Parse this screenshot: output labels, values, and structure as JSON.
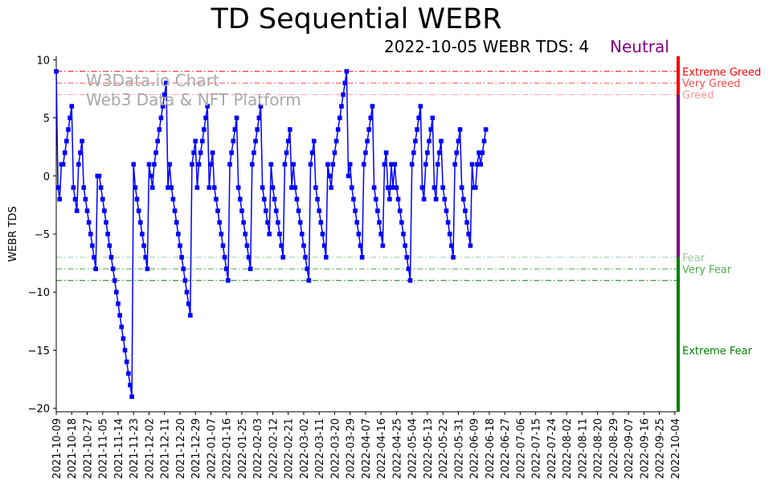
{
  "header": {
    "title": "TD Sequential WEBR",
    "subtitle": "2022-10-05 WEBR TDS: 4",
    "status": "Neutral",
    "status_color": "#800080"
  },
  "watermark": {
    "line1": "W3Data.io Chart",
    "line2": "Web3 Data & NFT Platform"
  },
  "chart_data": {
    "type": "line",
    "title": "TD Sequential WEBR",
    "ylabel": "WEBR TDS",
    "xlabel": "",
    "ylim": [
      -20.3,
      10.3
    ],
    "yticks": [
      10,
      5,
      0,
      -5,
      -10,
      -15,
      -20
    ],
    "xlim": [
      "2021-10-09",
      "2022-10-05"
    ],
    "xticks": [
      "2021-10-09",
      "2021-10-18",
      "2021-10-27",
      "2021-11-05",
      "2021-11-14",
      "2021-11-23",
      "2021-12-02",
      "2021-12-11",
      "2021-12-20",
      "2021-12-29",
      "2022-01-07",
      "2022-01-16",
      "2022-01-25",
      "2022-02-03",
      "2022-02-12",
      "2022-02-21",
      "2022-03-02",
      "2022-03-11",
      "2022-03-20",
      "2022-03-29",
      "2022-04-07",
      "2022-04-16",
      "2022-04-25",
      "2022-05-04",
      "2022-05-13",
      "2022-05-22",
      "2022-05-31",
      "2022-06-09",
      "2022-06-18",
      "2022-06-27",
      "2022-07-06",
      "2022-07-15",
      "2022-07-24",
      "2022-08-02",
      "2022-08-11",
      "2022-08-20",
      "2022-08-29",
      "2022-09-07",
      "2022-09-16",
      "2022-09-25",
      "2022-10-04"
    ],
    "grid": false,
    "line_color": "#0000ff",
    "series": [
      {
        "start_date": "2021-10-09",
        "interval_days": 1,
        "values": [
          9,
          -1,
          -2,
          1,
          1,
          2,
          3,
          4,
          5,
          6,
          -1,
          -2,
          -3,
          1,
          2,
          3,
          -1,
          -2,
          -3,
          -4,
          -5,
          -6,
          -7,
          -8,
          0,
          0,
          -1,
          -2,
          -3,
          -4,
          -5,
          -6,
          -7,
          -8,
          -9,
          -10,
          -11,
          -12,
          -13,
          -14,
          -15,
          -16,
          -17,
          -18,
          -19,
          1,
          -1,
          -2,
          -3,
          -4,
          -5,
          -6,
          -7,
          -8,
          1,
          0,
          -1,
          1,
          2,
          3,
          4,
          5,
          6,
          7,
          8,
          -1,
          1,
          -1,
          -2,
          -3,
          -4,
          -5,
          -6,
          -7,
          -8,
          -9,
          -10,
          -11,
          -12,
          1,
          2,
          3,
          -1,
          1,
          2,
          3,
          4,
          5,
          6,
          -1,
          1,
          2,
          -1,
          -2,
          -3,
          -4,
          -5,
          -6,
          -7,
          -8,
          -9,
          1,
          2,
          3,
          4,
          5,
          -1,
          -2,
          -3,
          -4,
          -5,
          -6,
          -7,
          -8,
          1,
          2,
          3,
          4,
          5,
          6,
          -1,
          -2,
          -3,
          -4,
          -5,
          1,
          -1,
          -2,
          -3,
          -4,
          -5,
          -6,
          -7,
          1,
          2,
          3,
          4,
          -1,
          1,
          -1,
          -2,
          -3,
          -4,
          -5,
          -6,
          -7,
          -8,
          -9,
          1,
          2,
          3,
          -1,
          -2,
          -3,
          -4,
          -5,
          -6,
          -7,
          1,
          0,
          -1,
          1,
          2,
          3,
          4,
          5,
          6,
          7,
          8,
          9,
          0,
          1,
          -1,
          -2,
          -3,
          -4,
          -5,
          -6,
          -7,
          1,
          2,
          3,
          4,
          5,
          6,
          -1,
          -2,
          -3,
          -4,
          -5,
          -6,
          1,
          2,
          -1,
          -2,
          1,
          -1,
          1,
          -1,
          -2,
          -3,
          -4,
          -5,
          -6,
          -7,
          -8,
          -9,
          1,
          2,
          3,
          4,
          5,
          6,
          -1,
          -2,
          1,
          2,
          3,
          4,
          5,
          -1,
          -2,
          1,
          2,
          3,
          -1,
          -2,
          -3,
          -4,
          -5,
          -6,
          -7,
          1,
          2,
          3,
          4,
          -1,
          -2,
          -3,
          -4,
          -5,
          -6,
          1,
          -1,
          -1,
          1,
          2,
          1,
          2,
          3,
          4
        ]
      }
    ],
    "thresholds": [
      {
        "label": "Extreme Greed",
        "value": 9,
        "color": "#ff0000"
      },
      {
        "label": "Very Greed",
        "value": 8,
        "color": "#ff4d4d"
      },
      {
        "label": "Greed",
        "value": 7,
        "color": "#ff9999"
      },
      {
        "label": "Fear",
        "value": -7,
        "color": "#99cc99"
      },
      {
        "label": "Very Fear",
        "value": -8,
        "color": "#4daf4d"
      },
      {
        "label": "Extreme Fear",
        "value": -9,
        "color": "#008000"
      }
    ],
    "side_bar": {
      "range": [
        -20.3,
        10.3
      ],
      "bands": [
        {
          "from": 7,
          "to": 10.3,
          "color": "#ff0000"
        },
        {
          "from": -7,
          "to": 7,
          "color": "#800080"
        },
        {
          "from": -20.3,
          "to": -7,
          "color": "#008000"
        }
      ]
    },
    "side_labels": [
      {
        "text": "Extreme Greed",
        "value": 9,
        "color": "#ff0000"
      },
      {
        "text": "Very Greed",
        "value": 8,
        "color": "#ff4d4d"
      },
      {
        "text": "Greed",
        "value": 7,
        "color": "#ff9999"
      },
      {
        "text": "Fear",
        "value": -7,
        "color": "#99cc99"
      },
      {
        "text": "Very Fear",
        "value": -8,
        "color": "#4daf4d"
      },
      {
        "text": "Extreme Fear",
        "value": -15,
        "color": "#008000"
      }
    ]
  }
}
